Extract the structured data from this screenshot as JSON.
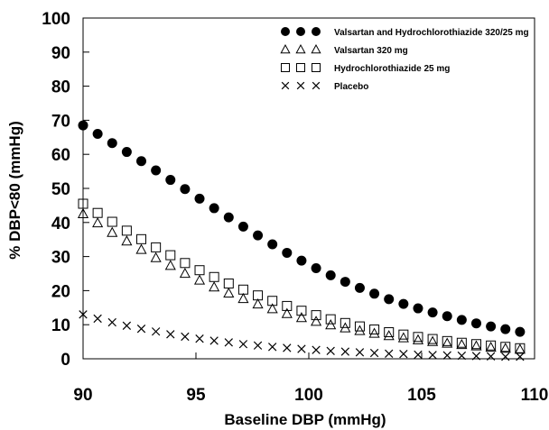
{
  "chart_data": {
    "type": "scatter",
    "title": "",
    "xlabel": "Baseline DBP (mmHg)",
    "ylabel": "% DBP<80 (mmHg)",
    "xlim": [
      90,
      110
    ],
    "ylim": [
      0,
      100
    ],
    "xticks": [
      90,
      95,
      100,
      105,
      110
    ],
    "yticks": [
      0,
      10,
      20,
      30,
      40,
      50,
      60,
      70,
      80,
      90,
      100
    ],
    "grid": false,
    "legend_position": "top-right",
    "x": [
      90,
      90.645,
      91.29,
      91.935,
      92.58,
      93.226,
      93.871,
      94.516,
      95.161,
      95.806,
      96.452,
      97.097,
      97.742,
      98.387,
      99.032,
      99.677,
      100.323,
      100.968,
      101.613,
      102.258,
      102.903,
      103.548,
      104.194,
      104.839,
      105.484,
      106.129,
      106.774,
      107.419,
      108.065,
      108.71,
      109.355
    ],
    "series": [
      {
        "name": "Valsartan and Hydrochlorothiazide 320/25 mg",
        "marker": "filled-circle",
        "color": "#000000",
        "values": [
          68.5,
          66.0,
          63.3,
          60.7,
          58.0,
          55.3,
          52.5,
          49.8,
          47.0,
          44.2,
          41.5,
          38.8,
          36.2,
          33.6,
          31.1,
          28.8,
          26.6,
          24.5,
          22.6,
          20.8,
          19.1,
          17.5,
          16.1,
          14.8,
          13.6,
          12.5,
          11.4,
          10.4,
          9.5,
          8.7,
          7.9
        ]
      },
      {
        "name": "Valsartan 320 mg",
        "marker": "open-triangle",
        "color": "#000000",
        "values": [
          42.5,
          39.8,
          37.0,
          34.5,
          32.0,
          29.6,
          27.3,
          25.0,
          23.0,
          21.0,
          19.2,
          17.6,
          16.0,
          14.6,
          13.2,
          12.0,
          10.9,
          9.9,
          9.0,
          8.2,
          7.4,
          6.7,
          6.1,
          5.5,
          5.0,
          4.5,
          4.1,
          3.7,
          3.3,
          3.0,
          2.7
        ]
      },
      {
        "name": "Hydrochlorothiazide 25 mg",
        "marker": "open-square",
        "color": "#000000",
        "values": [
          45.5,
          42.8,
          40.2,
          37.6,
          35.1,
          32.7,
          30.4,
          28.1,
          26.0,
          24.0,
          22.1,
          20.3,
          18.6,
          17.0,
          15.5,
          14.1,
          12.8,
          11.6,
          10.5,
          9.5,
          8.6,
          7.8,
          7.1,
          6.4,
          5.8,
          5.2,
          4.7,
          4.3,
          3.9,
          3.5,
          3.1
        ]
      },
      {
        "name": "Placebo",
        "marker": "x",
        "color": "#000000",
        "values": [
          13.0,
          11.8,
          10.7,
          9.7,
          8.8,
          8.0,
          7.2,
          6.5,
          5.9,
          5.3,
          4.8,
          4.3,
          3.9,
          3.5,
          3.2,
          2.9,
          2.6,
          2.3,
          2.1,
          1.9,
          1.7,
          1.5,
          1.4,
          1.2,
          1.1,
          1.0,
          0.9,
          0.8,
          0.7,
          0.6,
          0.6
        ]
      }
    ]
  }
}
